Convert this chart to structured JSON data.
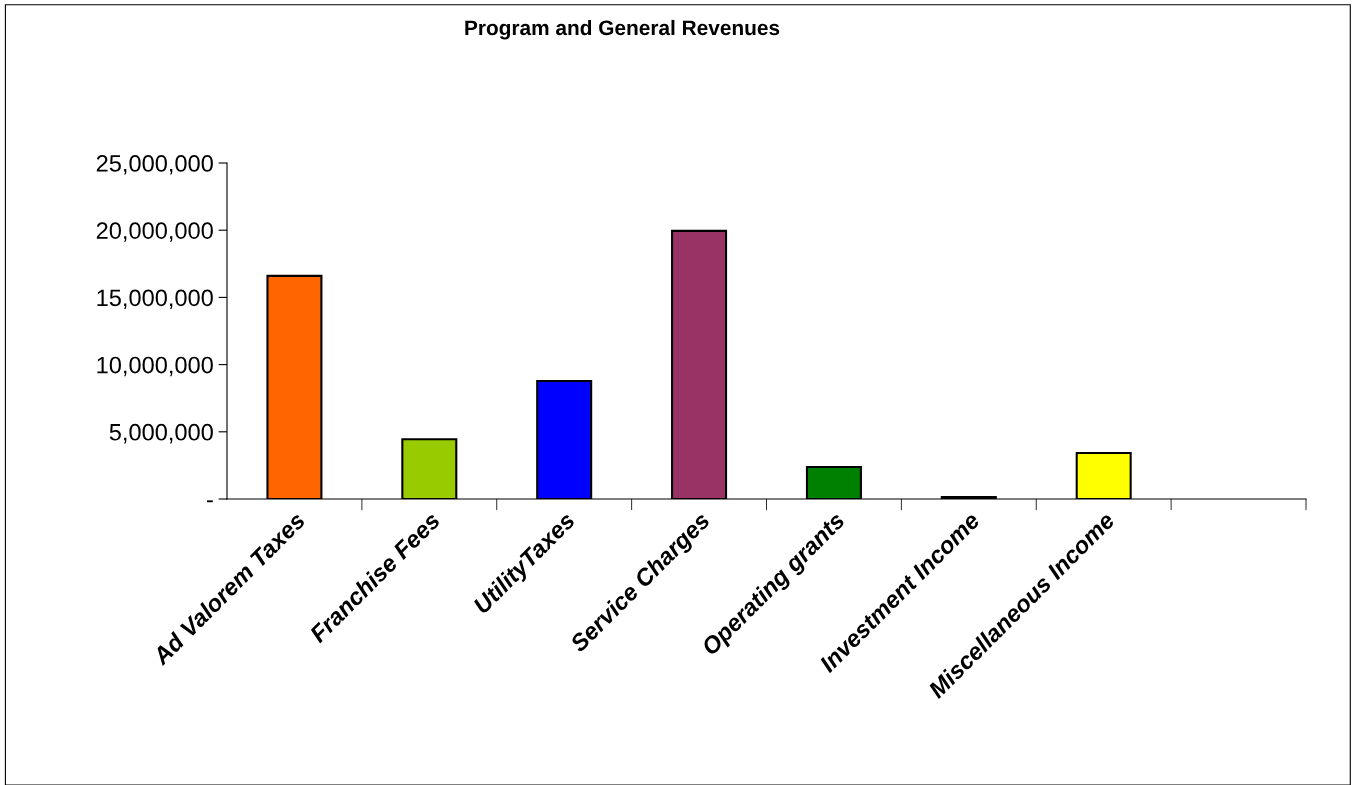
{
  "chart_data": {
    "type": "bar",
    "title": "Program and General Revenues",
    "categories": [
      "Ad Valorem Taxes",
      "Franchise Fees",
      "UtilityTaxes",
      "Service Charges",
      "Operating grants",
      "Investment Income",
      "Miscellaneous Income",
      null
    ],
    "values": [
      16600000,
      4450000,
      8780000,
      19950000,
      2380000,
      150000,
      3420000,
      null
    ],
    "colors": [
      "#ff6600",
      "#99cc00",
      "#0000ff",
      "#993366",
      "#008000",
      "#000000",
      "#ffff00",
      "#ffffff"
    ],
    "ylim": [
      0,
      25000000
    ],
    "yticks": [
      {
        "value": 0,
        "label": "-"
      },
      {
        "value": 5000000,
        "label": "5,000,000"
      },
      {
        "value": 10000000,
        "label": "10,000,000"
      },
      {
        "value": 15000000,
        "label": "15,000,000"
      },
      {
        "value": 20000000,
        "label": "20,000,000"
      },
      {
        "value": 25000000,
        "label": "25,000,000"
      }
    ],
    "grid": false,
    "legend": false
  }
}
